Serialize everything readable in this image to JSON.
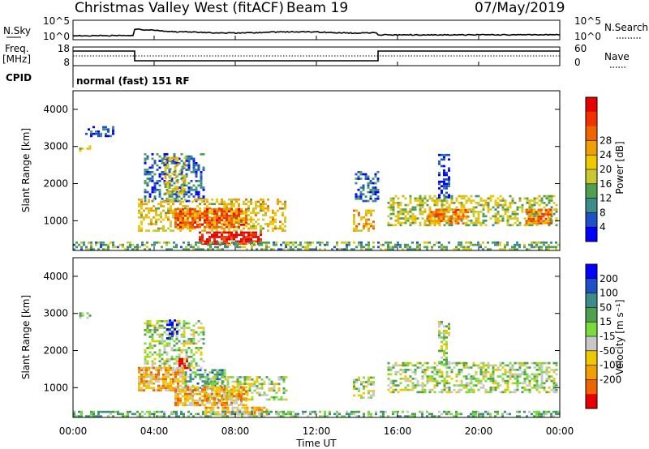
{
  "header": {
    "title": "Christmas Valley West (fitACF)",
    "beam": "Beam 19",
    "date": "07/May/2019"
  },
  "noise_panel": {
    "left_label": "N.Sky",
    "left_ticks": [
      "10^5",
      "10^0"
    ],
    "right_label": "N.Search",
    "right_ticks": [
      "10^5",
      "10^0"
    ]
  },
  "freq_panel": {
    "left_label_line1": "Freq.",
    "left_label_line2": "[MHz]",
    "left_ticks": [
      "18",
      "8"
    ],
    "right_label": "Nave",
    "right_ticks": [
      "60",
      "0"
    ],
    "cpid_label": "CPID",
    "cpid_text": "normal (fast) 151 RF"
  },
  "time_axis": {
    "label": "Time UT",
    "ticks": [
      "00:00",
      "04:00",
      "08:00",
      "12:00",
      "16:00",
      "20:00",
      "00:00"
    ]
  },
  "chart_data": [
    {
      "type": "heatmap",
      "name": "power",
      "ylabel": "Slant Range [km]",
      "yticks": [
        1000,
        2000,
        3000,
        4000
      ],
      "ylim": [
        200,
        4500
      ],
      "xlim_hours": [
        0,
        24
      ],
      "colorbar": {
        "label": "Power [dB]",
        "ticks": [
          "4",
          "8",
          "12",
          "16",
          "20",
          "24",
          "28"
        ],
        "colors": [
          "#0000ff",
          "#1e50c8",
          "#3c8c8c",
          "#50a050",
          "#c8c832",
          "#f0c800",
          "#f0a000",
          "#f06400",
          "#f03200",
          "#e60000"
        ]
      },
      "regions": [
        {
          "t0": 0.3,
          "t1": 0.9,
          "r0": 2850,
          "r1": 2980,
          "level": 0.45
        },
        {
          "t0": 0.6,
          "t1": 2.0,
          "r0": 3250,
          "r1": 3550,
          "level": 0.15
        },
        {
          "t0": 3.5,
          "t1": 6.5,
          "r0": 1500,
          "r1": 2800,
          "level": 0.2
        },
        {
          "t0": 4.5,
          "t1": 5.5,
          "r0": 1700,
          "r1": 2700,
          "level": 0.5
        },
        {
          "t0": 3.2,
          "t1": 10.5,
          "r0": 700,
          "r1": 1550,
          "level": 0.55
        },
        {
          "t0": 5.0,
          "t1": 8.5,
          "r0": 800,
          "r1": 1300,
          "level": 0.75
        },
        {
          "t0": 6.2,
          "t1": 9.2,
          "r0": 350,
          "r1": 700,
          "level": 0.95
        },
        {
          "t0": 13.8,
          "t1": 14.8,
          "r0": 700,
          "r1": 1300,
          "level": 0.6
        },
        {
          "t0": 13.9,
          "t1": 15.0,
          "r0": 1500,
          "r1": 2300,
          "level": 0.2
        },
        {
          "t0": 15.5,
          "t1": 23.8,
          "r0": 850,
          "r1": 1650,
          "level": 0.45
        },
        {
          "t0": 17.5,
          "t1": 19.5,
          "r0": 900,
          "r1": 1300,
          "level": 0.7
        },
        {
          "t0": 22.3,
          "t1": 23.6,
          "r0": 900,
          "r1": 1300,
          "level": 0.7
        },
        {
          "t0": 18.0,
          "t1": 18.5,
          "r0": 1600,
          "r1": 2800,
          "level": 0.1
        },
        {
          "t0": 0.0,
          "t1": 24.0,
          "r0": 200,
          "r1": 400,
          "level": 0.35
        }
      ]
    },
    {
      "type": "heatmap",
      "name": "velocity",
      "ylabel": "Slant Range [km]",
      "yticks": [
        1000,
        2000,
        3000,
        4000
      ],
      "ylim": [
        200,
        4500
      ],
      "xlim_hours": [
        0,
        24
      ],
      "colorbar": {
        "label": "Velocity [m s⁻¹]",
        "ticks": [
          "200",
          "100",
          "50",
          "15",
          "-15",
          "-50",
          "-100",
          "-200"
        ],
        "colors": [
          "#0000ff",
          "#1e50c8",
          "#3c8c8c",
          "#50a050",
          "#78dc3c",
          "#c8c8c8",
          "#f0c800",
          "#f0a000",
          "#f06400",
          "#e60000"
        ]
      },
      "regions": [
        {
          "t0": 0.3,
          "t1": 0.9,
          "r0": 2850,
          "r1": 2980,
          "level": 0.5
        },
        {
          "t0": 3.5,
          "t1": 6.5,
          "r0": 1500,
          "r1": 2800,
          "level": 0.5
        },
        {
          "t0": 4.6,
          "t1": 5.1,
          "r0": 2300,
          "r1": 2800,
          "level": 0.02
        },
        {
          "t0": 5.2,
          "t1": 5.8,
          "r0": 1500,
          "r1": 1800,
          "level": 0.98
        },
        {
          "t0": 3.2,
          "t1": 5.5,
          "r0": 900,
          "r1": 1550,
          "level": 0.7
        },
        {
          "t0": 5.5,
          "t1": 7.5,
          "r0": 900,
          "r1": 1500,
          "level": 0.35
        },
        {
          "t0": 6.5,
          "t1": 10.5,
          "r0": 650,
          "r1": 1300,
          "level": 0.5
        },
        {
          "t0": 5.0,
          "t1": 8.5,
          "r0": 500,
          "r1": 1000,
          "level": 0.7
        },
        {
          "t0": 6.5,
          "t1": 9.5,
          "r0": 250,
          "r1": 450,
          "level": 0.68
        },
        {
          "t0": 13.8,
          "t1": 14.8,
          "r0": 700,
          "r1": 1300,
          "level": 0.5
        },
        {
          "t0": 15.5,
          "t1": 23.8,
          "r0": 850,
          "r1": 1650,
          "level": 0.5
        },
        {
          "t0": 18.0,
          "t1": 18.5,
          "r0": 1600,
          "r1": 2800,
          "level": 0.5
        },
        {
          "t0": 0.0,
          "t1": 24.0,
          "r0": 200,
          "r1": 350,
          "level": 0.38
        }
      ]
    }
  ]
}
